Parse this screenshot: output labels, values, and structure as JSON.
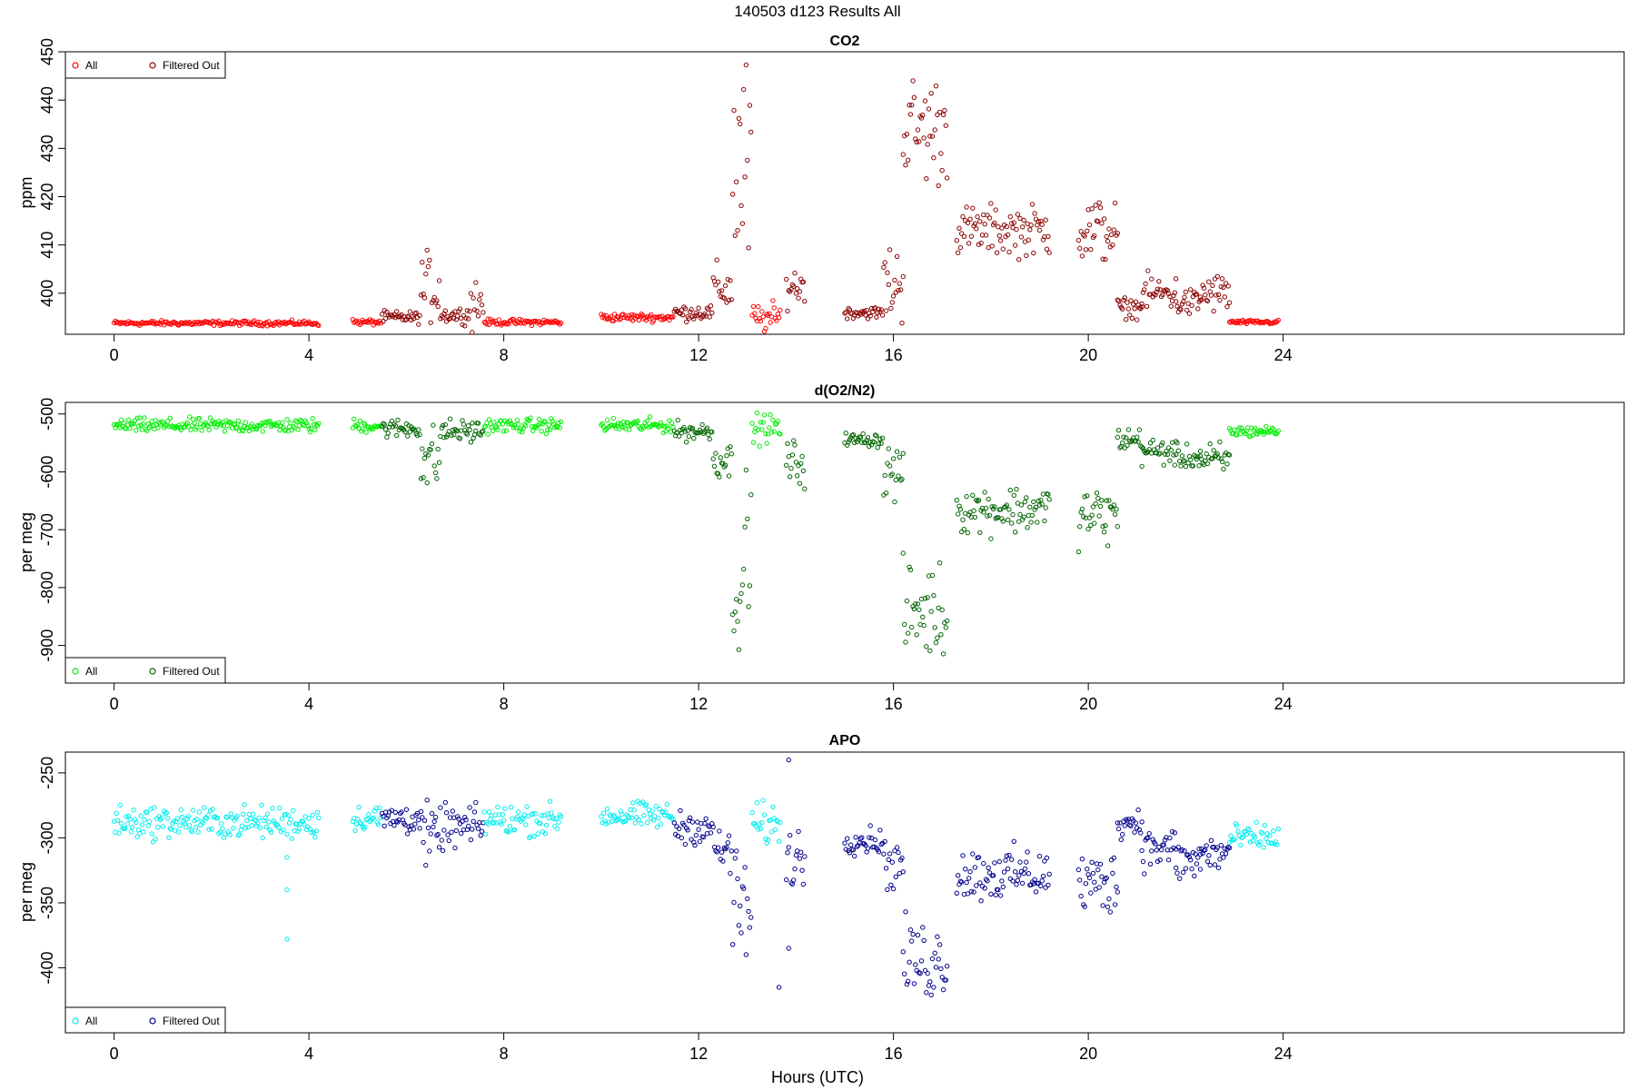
{
  "figure": {
    "title": "140503   d123   Results All",
    "xlabel": "Hours (UTC)"
  },
  "chart_data": [
    {
      "type": "scatter",
      "title": "CO2",
      "ylabel": "ppm",
      "xlim": [
        -1,
        31
      ],
      "ylim": [
        391.5,
        450
      ],
      "xticks": [
        0,
        4,
        8,
        12,
        16,
        20,
        24
      ],
      "yticks": [
        400,
        410,
        420,
        430,
        440,
        450
      ],
      "legend": {
        "position": "top-left",
        "entries": [
          "All",
          "Filtered Out"
        ]
      },
      "colors": {
        "all": "#ff0000",
        "filtered": "#8b0000"
      },
      "segments": [
        {
          "start": 0.0,
          "end": 4.2,
          "base": 393.8,
          "noise": 0.25
        },
        {
          "start": 4.9,
          "end": 5.5,
          "base": 394.0,
          "noise": 0.3
        },
        {
          "start": 5.5,
          "end": 6.3,
          "base": 395.0,
          "noise": 0.6,
          "filtered": true
        },
        {
          "start": 6.3,
          "end": 6.7,
          "base": 401.0,
          "noise": 3.5,
          "filtered": true
        },
        {
          "start": 6.7,
          "end": 7.3,
          "base": 395.5,
          "noise": 0.8,
          "filtered": true
        },
        {
          "start": 7.3,
          "end": 7.6,
          "base": 398.0,
          "noise": 3.0,
          "filtered": true
        },
        {
          "start": 7.6,
          "end": 9.2,
          "base": 394.0,
          "noise": 0.3
        },
        {
          "start": 10.0,
          "end": 11.5,
          "base": 395.0,
          "noise": 0.4
        },
        {
          "start": 11.5,
          "end": 12.3,
          "base": 396.0,
          "noise": 0.8,
          "filtered": true
        },
        {
          "start": 12.3,
          "end": 12.7,
          "base": 401.0,
          "noise": 2.5,
          "filtered": true
        },
        {
          "start": 12.7,
          "end": 13.1,
          "base": 425.0,
          "noise": 12.0,
          "filtered": true
        },
        {
          "start": 13.1,
          "end": 13.7,
          "base": 394.8,
          "noise": 1.5
        },
        {
          "start": 13.8,
          "end": 14.2,
          "base": 401.5,
          "noise": 2.0,
          "filtered": true
        },
        {
          "start": 15.0,
          "end": 15.8,
          "base": 396.0,
          "noise": 0.6,
          "filtered": true
        },
        {
          "start": 15.8,
          "end": 16.2,
          "base": 402.0,
          "noise": 4.0,
          "filtered": true
        },
        {
          "start": 16.2,
          "end": 17.1,
          "base": 434.0,
          "noise": 5.5,
          "filtered": true
        },
        {
          "start": 17.3,
          "end": 19.2,
          "base": 413.0,
          "noise": 2.5,
          "filtered": true
        },
        {
          "start": 19.8,
          "end": 20.6,
          "base": 413.0,
          "noise": 3.5,
          "filtered": true
        },
        {
          "start": 20.6,
          "end": 21.1,
          "base": 397.0,
          "noise": 1.0,
          "filtered": true
        },
        {
          "start": 21.1,
          "end": 21.8,
          "base": 400.0,
          "noise": 1.8,
          "filtered": true
        },
        {
          "start": 21.8,
          "end": 22.3,
          "base": 398.0,
          "noise": 1.5,
          "filtered": true
        },
        {
          "start": 22.3,
          "end": 22.9,
          "base": 400.0,
          "noise": 2.0,
          "filtered": true
        },
        {
          "start": 22.9,
          "end": 23.9,
          "base": 394.0,
          "noise": 0.2
        }
      ]
    },
    {
      "type": "scatter",
      "title": "d(O2/N2)",
      "ylabel": "per meg",
      "xlim": [
        -1,
        31
      ],
      "ylim": [
        -965,
        -480
      ],
      "xticks": [
        0,
        4,
        8,
        12,
        16,
        20,
        24
      ],
      "yticks": [
        -500,
        -600,
        -700,
        -800,
        -900
      ],
      "legend": {
        "position": "bottom-left",
        "entries": [
          "All",
          "Filtered Out"
        ]
      },
      "colors": {
        "all": "#00ee00",
        "filtered": "#006400"
      },
      "segments": [
        {
          "start": 0.0,
          "end": 4.2,
          "base": -520,
          "noise": 6
        },
        {
          "start": 4.9,
          "end": 5.5,
          "base": -520,
          "noise": 6
        },
        {
          "start": 5.5,
          "end": 6.3,
          "base": -525,
          "noise": 8,
          "filtered": true
        },
        {
          "start": 6.3,
          "end": 6.7,
          "base": -580,
          "noise": 30,
          "filtered": true
        },
        {
          "start": 6.7,
          "end": 7.6,
          "base": -530,
          "noise": 10,
          "filtered": true
        },
        {
          "start": 7.6,
          "end": 9.2,
          "base": -520,
          "noise": 6
        },
        {
          "start": 10.0,
          "end": 11.5,
          "base": -520,
          "noise": 6
        },
        {
          "start": 11.5,
          "end": 12.3,
          "base": -530,
          "noise": 8,
          "filtered": true
        },
        {
          "start": 12.3,
          "end": 12.7,
          "base": -580,
          "noise": 15,
          "filtered": true
        },
        {
          "start": 12.7,
          "end": 13.1,
          "base": -760,
          "noise": 80,
          "filtered": true
        },
        {
          "start": 13.1,
          "end": 13.7,
          "base": -525,
          "noise": 12
        },
        {
          "start": 13.8,
          "end": 14.2,
          "base": -585,
          "noise": 20,
          "filtered": true
        },
        {
          "start": 15.0,
          "end": 15.8,
          "base": -545,
          "noise": 6,
          "filtered": true
        },
        {
          "start": 15.8,
          "end": 16.2,
          "base": -600,
          "noise": 25,
          "filtered": true
        },
        {
          "start": 16.2,
          "end": 17.1,
          "base": -840,
          "noise": 40,
          "filtered": true
        },
        {
          "start": 17.3,
          "end": 19.2,
          "base": -665,
          "noise": 20,
          "filtered": true
        },
        {
          "start": 19.8,
          "end": 20.6,
          "base": -675,
          "noise": 25,
          "filtered": true
        },
        {
          "start": 20.6,
          "end": 21.1,
          "base": -545,
          "noise": 10,
          "filtered": true
        },
        {
          "start": 21.1,
          "end": 21.8,
          "base": -565,
          "noise": 12,
          "filtered": true
        },
        {
          "start": 21.8,
          "end": 22.3,
          "base": -575,
          "noise": 10,
          "filtered": true
        },
        {
          "start": 22.3,
          "end": 22.9,
          "base": -580,
          "noise": 15,
          "filtered": true
        },
        {
          "start": 22.9,
          "end": 23.9,
          "base": -530,
          "noise": 5
        }
      ]
    },
    {
      "type": "scatter",
      "title": "APO",
      "ylabel": "per meg",
      "xlim": [
        -1,
        31
      ],
      "ylim": [
        -450,
        -234
      ],
      "xticks": [
        0,
        4,
        8,
        12,
        16,
        20,
        24
      ],
      "yticks": [
        -250,
        -300,
        -350,
        -400
      ],
      "legend": {
        "position": "bottom-left",
        "entries": [
          "All",
          "Filtered Out"
        ]
      },
      "colors": {
        "all": "#00eeee",
        "filtered": "#00008b"
      },
      "segments": [
        {
          "start": 0.0,
          "end": 4.2,
          "base": -288,
          "noise": 6
        },
        {
          "start": 4.9,
          "end": 5.5,
          "base": -285,
          "noise": 5
        },
        {
          "start": 5.5,
          "end": 6.3,
          "base": -285,
          "noise": 6,
          "filtered": true
        },
        {
          "start": 6.3,
          "end": 6.7,
          "base": -300,
          "noise": 12,
          "filtered": true
        },
        {
          "start": 6.7,
          "end": 7.6,
          "base": -292,
          "noise": 8,
          "filtered": true
        },
        {
          "start": 7.6,
          "end": 9.2,
          "base": -286,
          "noise": 6
        },
        {
          "start": 10.0,
          "end": 11.5,
          "base": -283,
          "noise": 5
        },
        {
          "start": 11.5,
          "end": 12.3,
          "base": -292,
          "noise": 6,
          "filtered": true
        },
        {
          "start": 12.3,
          "end": 12.7,
          "base": -310,
          "noise": 10,
          "filtered": true
        },
        {
          "start": 12.7,
          "end": 13.1,
          "base": -355,
          "noise": 25,
          "filtered": true
        },
        {
          "start": 13.1,
          "end": 13.7,
          "base": -290,
          "noise": 8
        },
        {
          "start": 13.8,
          "end": 14.2,
          "base": -315,
          "noise": 12,
          "filtered": true
        },
        {
          "start": 15.0,
          "end": 15.8,
          "base": -302,
          "noise": 5,
          "filtered": true
        },
        {
          "start": 15.8,
          "end": 16.2,
          "base": -320,
          "noise": 10,
          "filtered": true
        },
        {
          "start": 16.2,
          "end": 17.1,
          "base": -395,
          "noise": 15,
          "filtered": true
        },
        {
          "start": 17.3,
          "end": 19.2,
          "base": -328,
          "noise": 10,
          "filtered": true
        },
        {
          "start": 19.8,
          "end": 20.6,
          "base": -335,
          "noise": 12,
          "filtered": true
        },
        {
          "start": 20.6,
          "end": 21.1,
          "base": -288,
          "noise": 6,
          "filtered": true
        },
        {
          "start": 21.1,
          "end": 21.8,
          "base": -308,
          "noise": 8,
          "filtered": true
        },
        {
          "start": 21.8,
          "end": 22.3,
          "base": -318,
          "noise": 8,
          "filtered": true
        },
        {
          "start": 22.3,
          "end": 22.9,
          "base": -312,
          "noise": 8,
          "filtered": true
        },
        {
          "start": 22.9,
          "end": 23.9,
          "base": -300,
          "noise": 5
        }
      ],
      "extra_points": [
        {
          "x": 3.55,
          "y": -315,
          "s": "all"
        },
        {
          "x": 3.55,
          "y": -340,
          "s": "all"
        },
        {
          "x": 3.55,
          "y": -378,
          "s": "all"
        },
        {
          "x": 13.65,
          "y": -415,
          "s": "filtered"
        },
        {
          "x": 13.85,
          "y": -240,
          "s": "filtered"
        },
        {
          "x": 13.85,
          "y": -385,
          "s": "filtered"
        }
      ]
    }
  ]
}
